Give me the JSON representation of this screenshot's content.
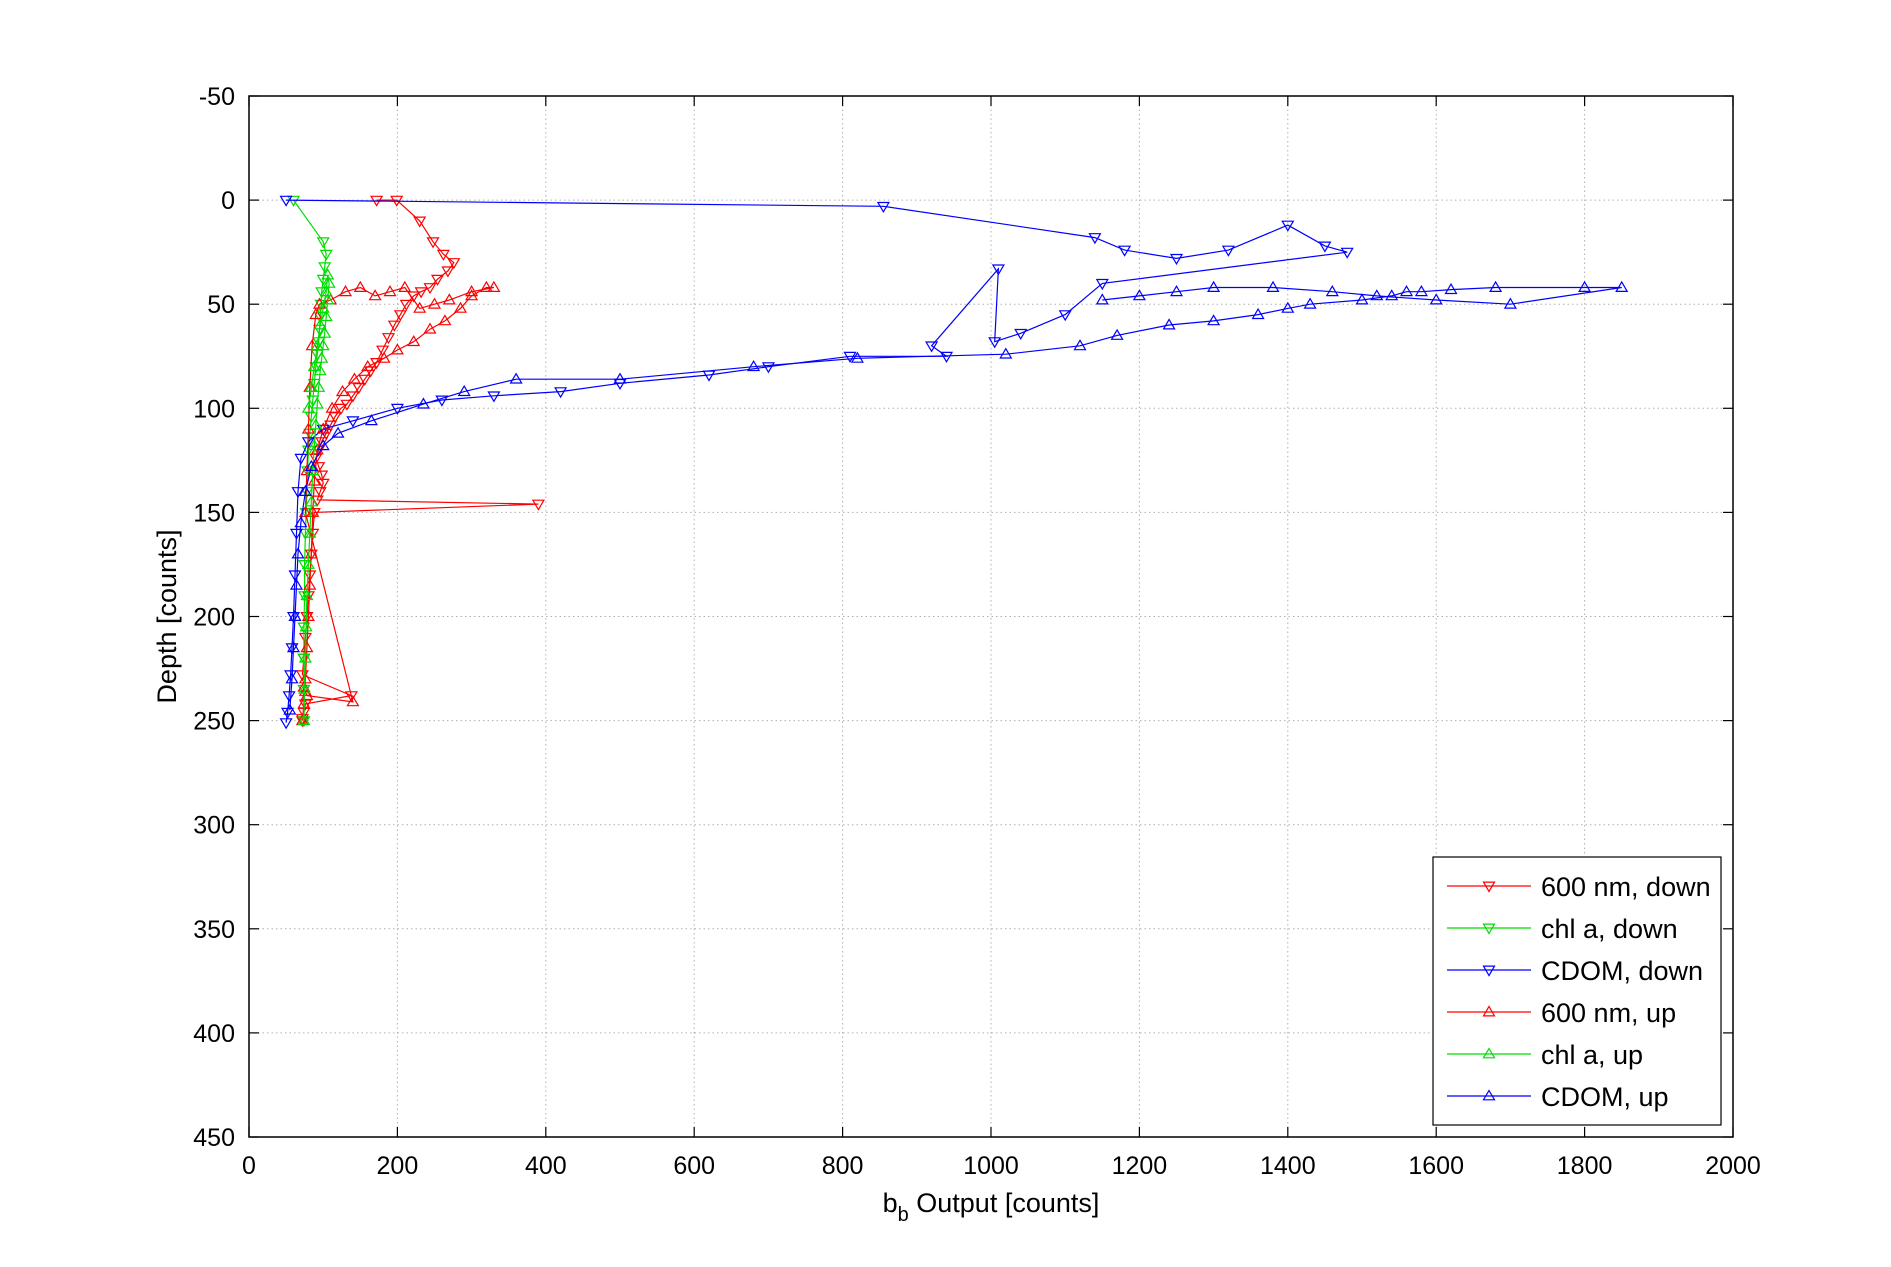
{
  "chart_data": {
    "type": "scatter",
    "title": "",
    "xlabel": {
      "main": "b",
      "sub": "b",
      "rest": " Output [counts]"
    },
    "ylabel": "Depth [counts]",
    "xlim": [
      0,
      2000
    ],
    "ylim": [
      -50,
      450
    ],
    "y_reversed": true,
    "grid": true,
    "legend_position": "bottom-right",
    "x_ticks": [
      "0",
      "200",
      "400",
      "600",
      "800",
      "1000",
      "1200",
      "1400",
      "1600",
      "1800",
      "2000"
    ],
    "y_ticks": [
      "-50",
      "0",
      "50",
      "100",
      "150",
      "200",
      "250",
      "300",
      "350",
      "400",
      "450"
    ],
    "series": [
      {
        "name": "600 nm, down",
        "color": "#ff0000",
        "marker": "triangle-down",
        "x": [
          172,
          199,
          230,
          248,
          262,
          276,
          268,
          254,
          244,
          232,
          222,
          212,
          204,
          196,
          188,
          180,
          172,
          164,
          156,
          148,
          140,
          132,
          124,
          116,
          110,
          104,
          98,
          94,
          90,
          94,
          98,
          100,
          96,
          92,
          390,
          88,
          86,
          84,
          82,
          80,
          78,
          76,
          74,
          72,
          138,
          76,
          74,
          72,
          72
        ],
        "y": [
          0,
          0,
          10,
          20,
          26,
          30,
          34,
          38,
          42,
          44,
          46,
          50,
          55,
          60,
          66,
          72,
          78,
          82,
          86,
          90,
          94,
          98,
          100,
          104,
          108,
          112,
          116,
          120,
          124,
          128,
          132,
          136,
          140,
          144,
          146,
          150,
          160,
          170,
          180,
          190,
          200,
          210,
          220,
          228,
          238,
          242,
          246,
          249,
          250
        ]
      },
      {
        "name": "chl a, down",
        "color": "#00dd00",
        "marker": "triangle-down",
        "x": [
          60,
          100,
          104,
          102,
          100,
          98,
          97,
          96,
          95,
          94,
          92,
          90,
          88,
          86,
          84,
          82,
          80,
          79,
          78,
          77,
          76,
          75,
          75,
          74,
          74,
          74,
          74
        ],
        "y": [
          0,
          20,
          26,
          32,
          38,
          44,
          50,
          56,
          62,
          68,
          74,
          80,
          88,
          96,
          104,
          112,
          120,
          130,
          140,
          150,
          160,
          175,
          190,
          205,
          220,
          235,
          250
        ]
      },
      {
        "name": "CDOM, down",
        "color": "#0000ff",
        "marker": "triangle-down",
        "x": [
          50,
          855,
          1140,
          1180,
          1250,
          1320,
          1400,
          1450,
          1480,
          1150,
          1100,
          1040,
          1005,
          1010,
          920,
          940,
          810,
          700,
          620,
          500,
          420,
          330,
          260,
          200,
          140,
          100,
          80,
          70,
          66,
          64,
          62,
          60,
          58,
          56,
          54,
          52,
          50
        ],
        "y": [
          0,
          3,
          18,
          24,
          28,
          24,
          12,
          22,
          25,
          40,
          55,
          64,
          68,
          33,
          70,
          75,
          75,
          80,
          84,
          88,
          92,
          94,
          96,
          100,
          106,
          110,
          116,
          124,
          140,
          160,
          180,
          200,
          215,
          228,
          238,
          246,
          251
        ]
      },
      {
        "name": "600 nm, up",
        "color": "#ff0000",
        "marker": "triangle-up",
        "x": [
          72,
          74,
          76,
          78,
          80,
          82,
          84,
          86,
          88,
          92,
          100,
          112,
          126,
          142,
          160,
          182,
          200,
          222,
          244,
          264,
          285,
          300,
          320,
          330,
          300,
          270,
          250,
          230,
          210,
          190,
          170,
          150,
          130,
          110,
          95,
          90,
          85,
          82,
          80,
          78,
          76,
          140,
          78,
          76,
          74
        ],
        "y": [
          250,
          242,
          230,
          215,
          200,
          185,
          170,
          150,
          135,
          120,
          110,
          100,
          92,
          86,
          80,
          76,
          72,
          68,
          62,
          58,
          52,
          46,
          42,
          42,
          44,
          48,
          50,
          52,
          42,
          44,
          46,
          42,
          44,
          48,
          50,
          55,
          70,
          90,
          110,
          130,
          150,
          241,
          238,
          236,
          234
        ]
      },
      {
        "name": "chl a, up",
        "color": "#00dd00",
        "marker": "triangle-up",
        "x": [
          74,
          75,
          76,
          77,
          78,
          80,
          82,
          84,
          86,
          88,
          90,
          92,
          94,
          96,
          98,
          100,
          102,
          104,
          106,
          108,
          106,
          104,
          100,
          96,
          92,
          88,
          84,
          80
        ],
        "y": [
          250,
          235,
          220,
          205,
          190,
          175,
          160,
          145,
          130,
          118,
          108,
          98,
          90,
          82,
          76,
          70,
          64,
          56,
          48,
          40,
          36,
          44,
          52,
          60,
          70,
          80,
          90,
          100
        ]
      },
      {
        "name": "CDOM, up",
        "color": "#0000ff",
        "marker": "triangle-up",
        "x": [
          55,
          58,
          60,
          62,
          64,
          66,
          70,
          76,
          84,
          100,
          120,
          165,
          235,
          290,
          360,
          500,
          680,
          820,
          1020,
          1120,
          1170,
          1240,
          1300,
          1360,
          1400,
          1430,
          1500,
          1540,
          1560,
          1580,
          1620,
          1680,
          1800,
          1850,
          1700,
          1600,
          1520,
          1460,
          1380,
          1300,
          1250,
          1200,
          1150
        ],
        "y": [
          245,
          230,
          215,
          200,
          185,
          170,
          155,
          140,
          128,
          118,
          112,
          106,
          98,
          92,
          86,
          86,
          80,
          76,
          74,
          70,
          65,
          60,
          58,
          55,
          52,
          50,
          48,
          46,
          44,
          44,
          43,
          42,
          42,
          42,
          50,
          48,
          46,
          44,
          42,
          42,
          44,
          46,
          48
        ]
      }
    ]
  }
}
